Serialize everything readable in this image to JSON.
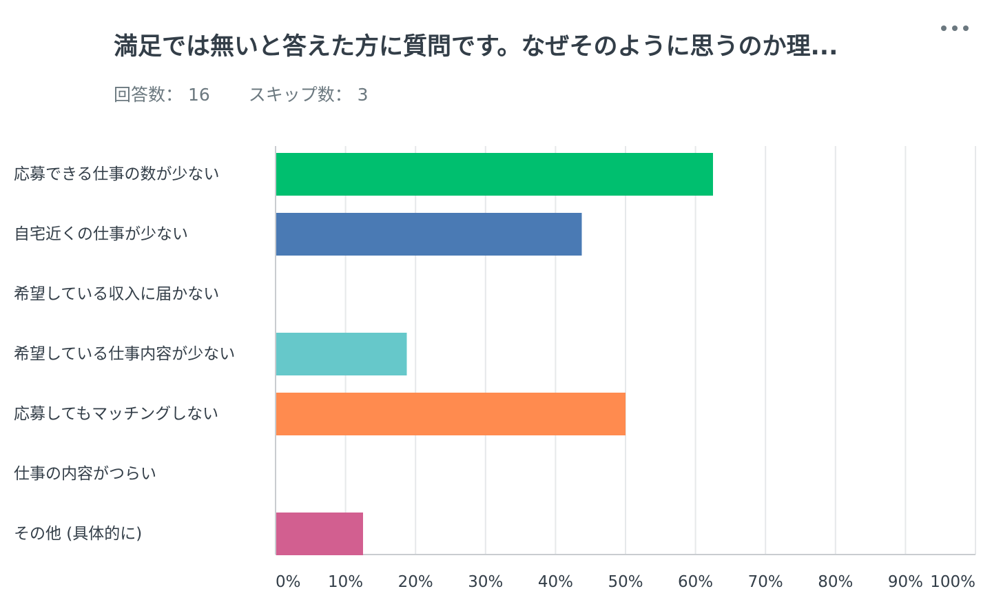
{
  "header": {
    "title": "満足では無いと答えた方に質問です。なぜそのように思うのか理...",
    "answered_label": "回答数：",
    "answered_count": "16",
    "skipped_label": "スキップ数：",
    "skipped_count": "3",
    "more_icon": "more-horizontal-icon"
  },
  "chart_data": {
    "type": "bar",
    "orientation": "horizontal",
    "title": "",
    "xlabel": "",
    "ylabel": "",
    "xlim": [
      0,
      100
    ],
    "unit": "%",
    "grid": true,
    "legend": "none",
    "ticks": [
      "0%",
      "10%",
      "20%",
      "30%",
      "40%",
      "50%",
      "60%",
      "70%",
      "80%",
      "90%",
      "100%"
    ],
    "categories": [
      "応募できる仕事の数が少ない",
      "自宅近くの仕事が少ない",
      "希望している収入に届かない",
      "希望している仕事内容が少ない",
      "応募してもマッチングしない",
      "仕事の内容がつらい",
      "その他 (具体的に)"
    ],
    "values": [
      62.5,
      43.75,
      0,
      18.75,
      50,
      0,
      12.5
    ],
    "colors": [
      "#00bf6f",
      "#4a7ab4",
      "#f7ca3a",
      "#66c8ca",
      "#ff8b4f",
      "#9c6fb5",
      "#d25f90"
    ]
  }
}
